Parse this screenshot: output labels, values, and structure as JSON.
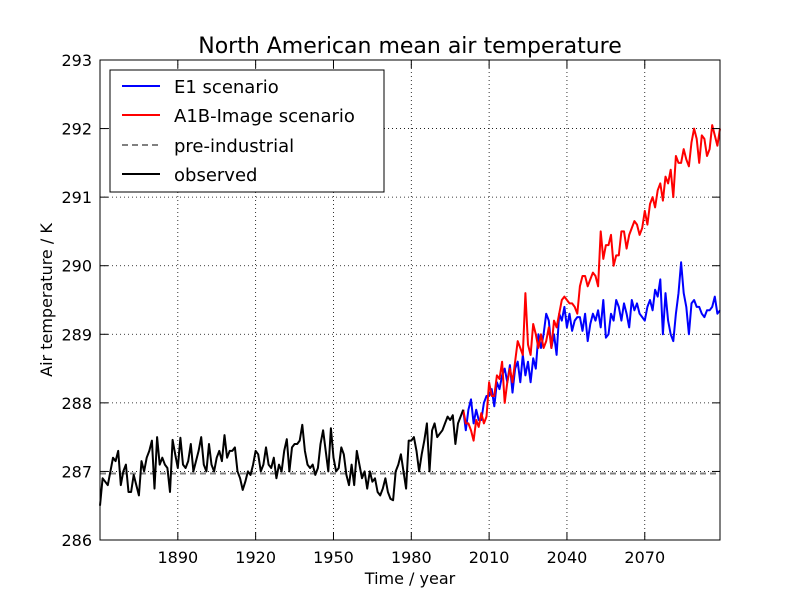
{
  "chart_data": {
    "type": "line",
    "title": "North American mean air temperature",
    "xlabel": "Time / year",
    "ylabel": "Air temperature / K",
    "xlim": [
      1860,
      2099
    ],
    "ylim": [
      286,
      293
    ],
    "xticks": [
      1890,
      1920,
      1950,
      1980,
      2010,
      2040,
      2070
    ],
    "yticks": [
      286,
      287,
      288,
      289,
      290,
      291,
      292,
      293
    ],
    "grid": true,
    "legend_position": "top-left",
    "legend": [
      "E1 scenario",
      "A1B-Image scenario",
      "pre-industrial",
      "observed"
    ],
    "reference_line": {
      "name": "pre-industrial",
      "value": 286.97,
      "color": "#808080",
      "style": "dashed"
    },
    "series": [
      {
        "name": "E1 scenario",
        "color": "#0000ff",
        "x_start": 2000,
        "x_step": 1,
        "values": [
          287.9,
          287.6,
          287.9,
          288.05,
          287.7,
          287.9,
          287.75,
          287.75,
          288.0,
          288.1,
          288.1,
          288.2,
          287.95,
          288.3,
          288.2,
          288.4,
          288.5,
          288.3,
          288.55,
          288.15,
          288.5,
          288.6,
          288.3,
          288.7,
          288.4,
          288.6,
          288.3,
          288.65,
          288.5,
          289.0,
          288.8,
          289.0,
          289.3,
          289.2,
          288.8,
          289.0,
          288.7,
          289.3,
          289.2,
          289.4,
          289.1,
          289.3,
          289.05,
          289.2,
          289.25,
          289.25,
          289.05,
          289.3,
          288.9,
          289.15,
          289.3,
          289.2,
          289.35,
          289.1,
          289.5,
          288.95,
          289.0,
          289.3,
          289.2,
          289.5,
          289.4,
          289.2,
          289.45,
          289.3,
          289.1,
          289.5,
          289.35,
          289.45,
          289.3,
          289.25,
          289.2,
          289.4,
          289.5,
          289.35,
          289.65,
          289.55,
          289.8,
          289.0,
          289.6,
          289.2,
          289.0,
          288.9,
          289.3,
          289.6,
          290.05,
          289.6,
          289.4,
          289.0,
          289.45,
          289.5,
          289.4,
          289.4,
          289.3,
          289.25,
          289.35,
          289.35,
          289.4,
          289.55,
          289.3,
          289.35
        ]
      },
      {
        "name": "A1B-Image scenario",
        "color": "#ff0000",
        "x_start": 2000,
        "x_step": 1,
        "values": [
          287.9,
          287.7,
          287.7,
          287.6,
          287.45,
          287.75,
          287.65,
          287.85,
          287.7,
          287.8,
          288.3,
          288.1,
          288.1,
          288.4,
          288.35,
          288.6,
          288.0,
          288.3,
          288.5,
          288.3,
          288.6,
          288.9,
          288.8,
          288.7,
          289.6,
          288.85,
          288.7,
          289.15,
          289.0,
          288.8,
          289.0,
          288.8,
          288.9,
          289.1,
          288.8,
          289.2,
          289.1,
          289.3,
          289.5,
          289.55,
          289.5,
          289.45,
          289.45,
          289.4,
          289.3,
          289.7,
          289.85,
          289.85,
          289.7,
          289.8,
          289.9,
          289.85,
          289.7,
          290.5,
          290.1,
          290.3,
          290.3,
          290.45,
          290.0,
          290.15,
          290.15,
          290.5,
          290.5,
          290.25,
          290.45,
          290.55,
          290.65,
          290.6,
          290.45,
          290.55,
          290.8,
          290.6,
          290.9,
          291.0,
          290.85,
          291.1,
          291.2,
          290.95,
          291.3,
          291.2,
          291.4,
          291.0,
          291.6,
          291.5,
          291.5,
          291.7,
          291.55,
          291.45,
          291.8,
          292.0,
          291.85,
          291.5,
          291.9,
          291.85,
          291.6,
          291.7,
          292.05,
          291.9,
          291.75,
          292.0
        ]
      },
      {
        "name": "observed",
        "color": "#000000",
        "x_start": 1860,
        "x_step": 1,
        "values": [
          286.5,
          286.9,
          286.85,
          286.8,
          287.0,
          287.2,
          287.15,
          287.3,
          286.8,
          287.0,
          287.1,
          286.7,
          286.7,
          286.95,
          286.8,
          286.65,
          287.15,
          287.0,
          287.2,
          287.3,
          287.45,
          286.75,
          287.5,
          287.1,
          287.2,
          287.1,
          287.05,
          286.7,
          287.46,
          287.25,
          287.05,
          287.49,
          287.1,
          287.05,
          287.15,
          287.4,
          287.0,
          287.15,
          287.3,
          287.5,
          287.1,
          287.0,
          287.4,
          287.1,
          287.0,
          287.2,
          287.3,
          287.15,
          287.53,
          287.2,
          287.3,
          287.3,
          287.35,
          287.0,
          286.9,
          286.73,
          286.85,
          287.0,
          286.95,
          287.1,
          287.3,
          287.25,
          287.0,
          287.1,
          287.35,
          287.1,
          287.05,
          287.2,
          286.9,
          287.1,
          287.0,
          287.3,
          287.47,
          287.0,
          287.35,
          287.4,
          287.4,
          287.45,
          287.68,
          287.3,
          287.1,
          287.05,
          287.1,
          286.95,
          287.05,
          287.4,
          287.6,
          287.3,
          287.0,
          287.63,
          287.2,
          287.0,
          287.05,
          287.35,
          287.25,
          286.95,
          286.8,
          287.1,
          286.8,
          287.3,
          287.1,
          286.9,
          287.0,
          286.75,
          287.0,
          286.85,
          286.9,
          286.7,
          286.65,
          286.75,
          286.9,
          286.7,
          286.6,
          286.58,
          287.0,
          287.1,
          287.25,
          287.0,
          286.75,
          287.45,
          287.45,
          287.5,
          287.3,
          287.0,
          287.25,
          287.45,
          287.7,
          287.0,
          287.6,
          287.7,
          287.5,
          287.55,
          287.6,
          287.7,
          287.8,
          287.75,
          287.82,
          287.4,
          287.7,
          287.8,
          287.9
        ]
      }
    ]
  }
}
